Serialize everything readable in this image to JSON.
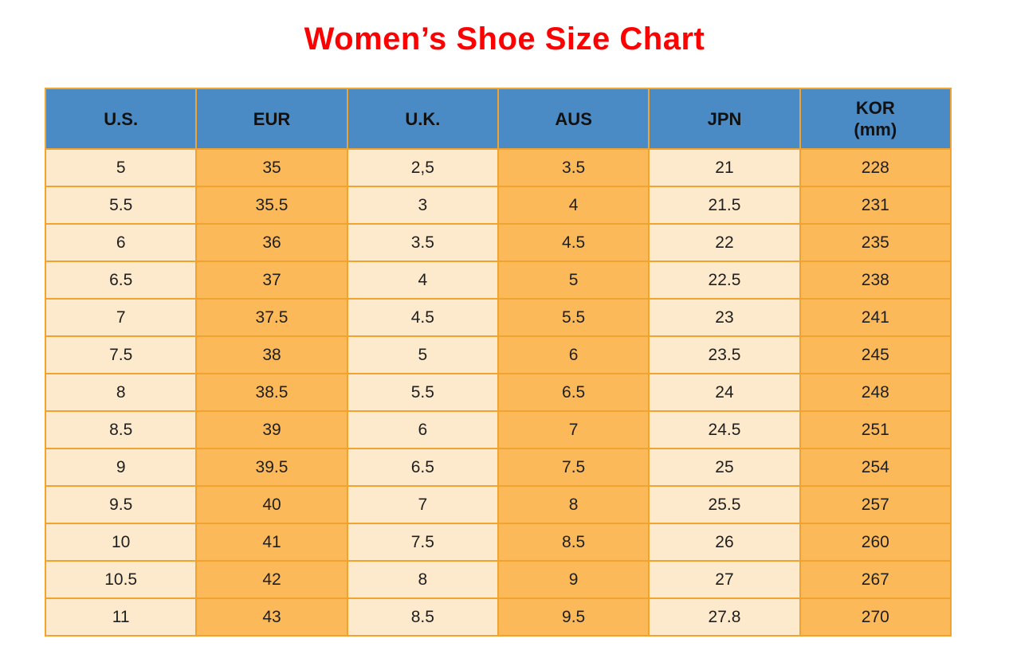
{
  "title": "Women’s Shoe Size Chart",
  "colors": {
    "title": "#FF0000",
    "header_bg": "#4A8BC6",
    "column_cream": "#FDE9CC",
    "column_orange": "#FBB95A",
    "grid_border": "#F0A32E",
    "cell_text": "#1F1F1F"
  },
  "chart_data": {
    "type": "table",
    "title": "Women’s Shoe Size Chart",
    "columns": [
      {
        "label": "U.S.",
        "sublabel": ""
      },
      {
        "label": "EUR",
        "sublabel": ""
      },
      {
        "label": "U.K.",
        "sublabel": ""
      },
      {
        "label": "AUS",
        "sublabel": ""
      },
      {
        "label": "JPN",
        "sublabel": ""
      },
      {
        "label": "KOR",
        "sublabel": "(mm)"
      }
    ],
    "rows": [
      [
        "5",
        "35",
        "2,5",
        "3.5",
        "21",
        "228"
      ],
      [
        "5.5",
        "35.5",
        "3",
        "4",
        "21.5",
        "231"
      ],
      [
        "6",
        "36",
        "3.5",
        "4.5",
        "22",
        "235"
      ],
      [
        "6.5",
        "37",
        "4",
        "5",
        "22.5",
        "238"
      ],
      [
        "7",
        "37.5",
        "4.5",
        "5.5",
        "23",
        "241"
      ],
      [
        "7.5",
        "38",
        "5",
        "6",
        "23.5",
        "245"
      ],
      [
        "8",
        "38.5",
        "5.5",
        "6.5",
        "24",
        "248"
      ],
      [
        "8.5",
        "39",
        "6",
        "7",
        "24.5",
        "251"
      ],
      [
        "9",
        "39.5",
        "6.5",
        "7.5",
        "25",
        "254"
      ],
      [
        "9.5",
        "40",
        "7",
        "8",
        "25.5",
        "257"
      ],
      [
        "10",
        "41",
        "7.5",
        "8.5",
        "26",
        "260"
      ],
      [
        "10.5",
        "42",
        "8",
        "9",
        "27",
        "267"
      ],
      [
        "11",
        "43",
        "8.5",
        "9.5",
        "27.8",
        "270"
      ]
    ]
  }
}
